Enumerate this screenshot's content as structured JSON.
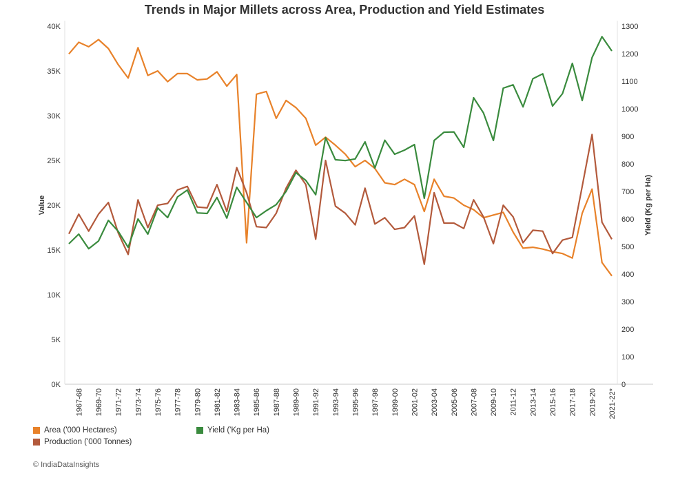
{
  "title": "Trends in Major Millets across Area, Production and Yield Estimates",
  "credit": "© IndiaDataInsights",
  "colors": {
    "area": "#E8822A",
    "production": "#B35A3C",
    "yield": "#3A8B3E"
  },
  "legend": {
    "area": "Area ('000 Hectares)",
    "production": "Production ('000 Tonnes)",
    "yield": "Yield ('Kg per Ha)"
  },
  "chart_data": {
    "type": "line",
    "title": "Trends in Major Millets across Area, Production and Yield Estimates",
    "xlabel": "",
    "ylabel": "Value",
    "y2label": "Yield (Kg per Ha)",
    "ylim": [
      0,
      40000
    ],
    "y2lim": [
      0,
      1300
    ],
    "yticks": [
      "0K",
      "5K",
      "10K",
      "15K",
      "20K",
      "25K",
      "30K",
      "35K",
      "40K"
    ],
    "y2ticks": [
      "0",
      "100",
      "200",
      "300",
      "400",
      "500",
      "600",
      "700",
      "800",
      "900",
      "1000",
      "1100",
      "1200",
      "1300"
    ],
    "grid": false,
    "legend_position": "bottom-left",
    "x": [
      "1966-67",
      "1967-68",
      "1968-69",
      "1969-70",
      "1970-71",
      "1971-72",
      "1972-73",
      "1973-74",
      "1974-75",
      "1975-76",
      "1976-77",
      "1977-78",
      "1978-79",
      "1979-80",
      "1980-81",
      "1981-82",
      "1982-83",
      "1983-84",
      "1984-85",
      "1985-86",
      "1986-87",
      "1987-88",
      "1988-89",
      "1989-90",
      "1990-91",
      "1991-92",
      "1992-93",
      "1993-94",
      "1994-95",
      "1995-96",
      "1996-97",
      "1997-98",
      "1998-99",
      "1999-00",
      "2000-01",
      "2001-02",
      "2002-03",
      "2003-04",
      "2004-05",
      "2005-06",
      "2006-07",
      "2007-08",
      "2008-09",
      "2009-10",
      "2010-11",
      "2011-12",
      "2012-13",
      "2013-14",
      "2014-15",
      "2015-16",
      "2016-17",
      "2017-18",
      "2018-19",
      "2019-20",
      "2020-21",
      "2021-22*"
    ],
    "x_tick_labels": [
      "1967-68",
      "1969-70",
      "1971-72",
      "1973-74",
      "1975-76",
      "1977-78",
      "1979-80",
      "1981-82",
      "1983-84",
      "1985-86",
      "1987-88",
      "1989-90",
      "1991-92",
      "1993-94",
      "1995-96",
      "1997-98",
      "1999-00",
      "2001-02",
      "2003-04",
      "2005-06",
      "2007-08",
      "2009-10",
      "2011-12",
      "2013-14",
      "2015-16",
      "2017-18",
      "2019-20",
      "2021-22*"
    ],
    "series": [
      {
        "name": "Area ('000 Hectares)",
        "axis": "left",
        "values": [
          36900,
          38200,
          37700,
          38500,
          37500,
          35700,
          34200,
          37600,
          34500,
          35000,
          33800,
          34700,
          34700,
          34000,
          34100,
          34900,
          33300,
          34600,
          15800,
          32400,
          32700,
          29700,
          31700,
          30900,
          29700,
          26700,
          27600,
          26700,
          25700,
          24300,
          25000,
          24100,
          22500,
          22300,
          22900,
          22300,
          19300,
          22900,
          21000,
          20800,
          20000,
          19500,
          18600,
          18900,
          19200,
          17000,
          15200,
          15300,
          15100,
          14800,
          14600,
          14100,
          19100,
          21800,
          13600,
          12100
        ]
      },
      {
        "name": "Production ('000 Tonnes)",
        "axis": "left",
        "values": [
          16800,
          19000,
          17100,
          19000,
          20300,
          16900,
          14500,
          20600,
          17500,
          20000,
          20200,
          21700,
          22100,
          19800,
          19700,
          22300,
          19300,
          24200,
          21400,
          17600,
          17500,
          19100,
          21900,
          23900,
          22300,
          16200,
          25000,
          19900,
          19100,
          17800,
          21900,
          17900,
          18600,
          17300,
          17500,
          18800,
          13400,
          21400,
          18000,
          18000,
          17400,
          20600,
          18700,
          15700,
          20000,
          18700,
          15800,
          17200,
          17100,
          14600,
          16100,
          16400,
          22100,
          27900,
          18100,
          16200
        ]
      },
      {
        "name": "Yield ('Kg per Ha)",
        "axis": "right",
        "values": [
          510,
          545,
          492,
          520,
          595,
          555,
          497,
          600,
          545,
          640,
          605,
          680,
          705,
          622,
          620,
          678,
          603,
          715,
          660,
          605,
          630,
          652,
          700,
          768,
          740,
          688,
          895,
          815,
          812,
          818,
          880,
          785,
          886,
          835,
          850,
          870,
          675,
          885,
          915,
          916,
          860,
          1040,
          985,
          885,
          1075,
          1087,
          1007,
          1109,
          1127,
          1010,
          1055,
          1165,
          1030,
          1186,
          1262,
          1210
        ]
      }
    ]
  }
}
